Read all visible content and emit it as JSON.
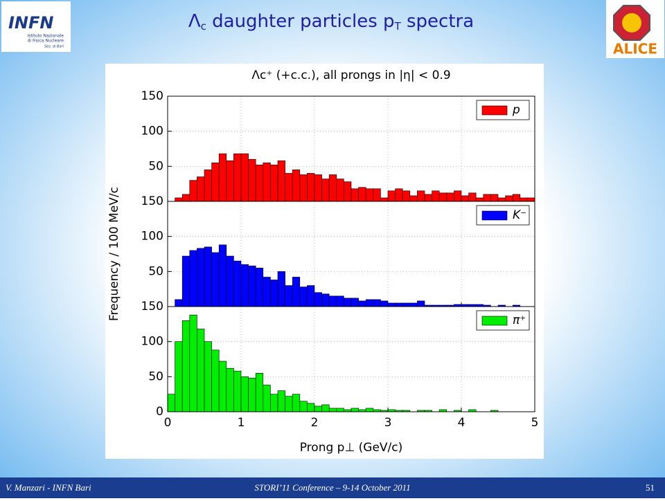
{
  "slide": {
    "title": {
      "lead": "Λ",
      "sub": "c",
      "mid": " daughter particles p",
      "sub2": "T",
      "end": " spectra"
    },
    "infn": {
      "name": "INFN",
      "line1": "Istituto Nazionale",
      "line2": "di Fisica Nucleare",
      "line3": "Sez. di Bari"
    },
    "alice": "ALICE",
    "footer": {
      "left": "V. Manzari - INFN Bari",
      "center": "STORI’11 Conference – 9-14 October 2011",
      "right": "51"
    }
  },
  "chart_data": [
    {
      "type": "histogram",
      "title": "Λc⁺ (+c.c.), all prongs in |η| < 0.9",
      "bins": [
        0,
        0.1,
        0.2,
        0.3,
        0.4,
        0.5,
        0.6,
        0.7,
        0.8,
        0.9,
        1,
        1.1,
        1.2,
        1.3,
        1.4,
        1.5,
        1.6,
        1.7,
        1.8,
        1.9,
        2,
        2.1,
        2.2,
        2.3,
        2.4,
        2.5,
        2.6,
        2.7,
        2.8,
        2.9,
        3,
        3.1,
        3.2,
        3.3,
        3.4,
        3.5,
        3.6,
        3.7,
        3.8,
        3.9,
        4,
        4.1,
        4.2,
        4.3,
        4.4,
        4.5,
        4.6,
        4.7,
        4.8,
        4.9,
        5
      ],
      "series": [
        {
          "name": "p",
          "color": "#ff0000",
          "values": [
            0,
            5,
            10,
            30,
            35,
            45,
            55,
            68,
            58,
            68,
            68,
            60,
            52,
            55,
            52,
            58,
            40,
            45,
            38,
            40,
            38,
            32,
            38,
            32,
            28,
            18,
            20,
            18,
            18,
            5,
            15,
            18,
            15,
            8,
            15,
            10,
            15,
            12,
            12,
            15,
            8,
            12,
            5,
            10,
            10,
            5,
            8,
            10,
            5,
            5
          ]
        }
      ],
      "xlim": [
        0,
        5
      ],
      "ylim": [
        0,
        150
      ],
      "yticks": [
        50,
        100,
        150
      ],
      "grid": true,
      "legend": "upper right"
    },
    {
      "type": "histogram",
      "ylabel": "Frequency / 100 MeV/c",
      "bins": [
        0,
        0.1,
        0.2,
        0.3,
        0.4,
        0.5,
        0.6,
        0.7,
        0.8,
        0.9,
        1,
        1.1,
        1.2,
        1.3,
        1.4,
        1.5,
        1.6,
        1.7,
        1.8,
        1.9,
        2,
        2.1,
        2.2,
        2.3,
        2.4,
        2.5,
        2.6,
        2.7,
        2.8,
        2.9,
        3,
        3.1,
        3.2,
        3.3,
        3.4,
        3.5,
        3.6,
        3.7,
        3.8,
        3.9,
        4,
        4.1,
        4.2,
        4.3,
        4.4,
        4.5,
        4.6,
        4.7,
        4.8,
        4.9,
        5
      ],
      "series": [
        {
          "name": "K⁻",
          "color": "#0000ff",
          "values": [
            0,
            10,
            72,
            80,
            83,
            85,
            77,
            88,
            72,
            65,
            60,
            58,
            55,
            42,
            38,
            50,
            30,
            42,
            28,
            30,
            20,
            18,
            15,
            15,
            12,
            12,
            8,
            10,
            10,
            8,
            5,
            5,
            5,
            5,
            8,
            2,
            2,
            2,
            2,
            3,
            3,
            3,
            3,
            2,
            0,
            2,
            0,
            2,
            0,
            0
          ]
        }
      ],
      "xlim": [
        0,
        5
      ],
      "ylim": [
        0,
        150
      ],
      "yticks": [
        50,
        100,
        150
      ],
      "grid": true,
      "legend": "upper right"
    },
    {
      "type": "histogram",
      "xlabel": "Prong p⊥ (GeV/c)",
      "bins": [
        0,
        0.1,
        0.2,
        0.3,
        0.4,
        0.5,
        0.6,
        0.7,
        0.8,
        0.9,
        1,
        1.1,
        1.2,
        1.3,
        1.4,
        1.5,
        1.6,
        1.7,
        1.8,
        1.9,
        2,
        2.1,
        2.2,
        2.3,
        2.4,
        2.5,
        2.6,
        2.7,
        2.8,
        2.9,
        3,
        3.1,
        3.2,
        3.3,
        3.4,
        3.5,
        3.6,
        3.7,
        3.8,
        3.9,
        4,
        4.1,
        4.2,
        4.3,
        4.4,
        4.5,
        4.6,
        4.7,
        4.8,
        4.9,
        5
      ],
      "series": [
        {
          "name": "π⁺",
          "color": "#00ee00",
          "values": [
            25,
            100,
            130,
            138,
            118,
            100,
            88,
            72,
            62,
            58,
            50,
            48,
            55,
            38,
            25,
            30,
            22,
            25,
            15,
            12,
            8,
            10,
            5,
            5,
            3,
            5,
            3,
            5,
            3,
            2,
            3,
            2,
            2,
            0,
            2,
            2,
            0,
            3,
            0,
            2,
            0,
            3,
            0,
            0,
            2,
            0,
            0,
            0,
            0,
            0
          ]
        }
      ],
      "xlim": [
        0,
        5
      ],
      "xticks": [
        0,
        1,
        2,
        3,
        4,
        5
      ],
      "ylim": [
        0,
        150
      ],
      "yticks": [
        0,
        50,
        100,
        150
      ],
      "grid": true,
      "legend": "upper right"
    }
  ]
}
